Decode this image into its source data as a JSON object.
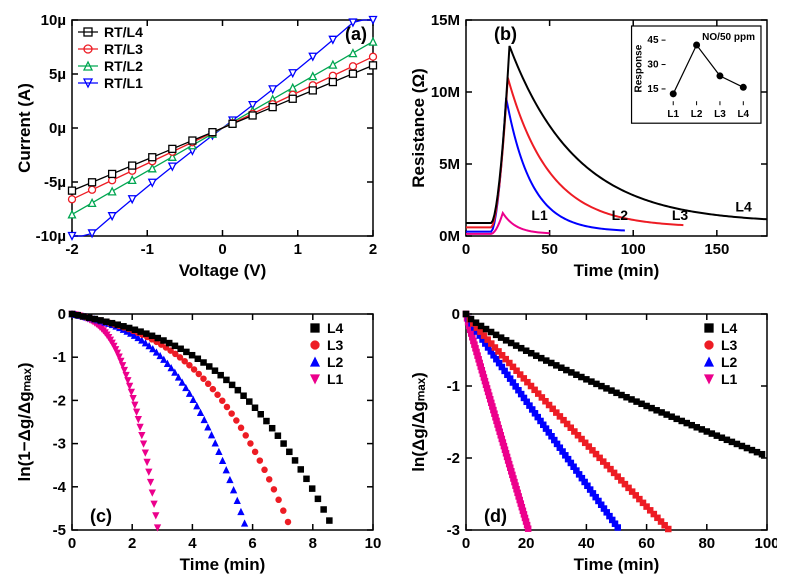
{
  "global": {
    "background_color": "#ffffff",
    "axis_color": "#000000",
    "font_family": "Arial",
    "tick_label_fontsize": 15,
    "axis_label_fontsize": 17,
    "panel_label_fontsize": 18,
    "legend_fontsize": 14
  },
  "colors": {
    "L4": "#000000",
    "L3": "#ed1c24",
    "L2": "#00a651",
    "L1": "#0000ff",
    "L3_alt": "#ed1c24",
    "L2_alt": "#0000ff",
    "L1_alt": "#ec008c"
  },
  "panel_a": {
    "label": "(a)",
    "xlabel": "Voltage (V)",
    "ylabel": "Current (A)",
    "xlim": [
      -2,
      2
    ],
    "xtick_step": 1,
    "ylim": [
      -10,
      10
    ],
    "ytick_step": 5,
    "ytick_suffix": "µ",
    "legend": [
      {
        "key": "RT/L4",
        "marker": "square",
        "color": "#000000"
      },
      {
        "key": "RT/L3",
        "marker": "circle",
        "color": "#ed1c24"
      },
      {
        "key": "RT/L2",
        "marker": "triangle-up",
        "color": "#00a651"
      },
      {
        "key": "RT/L1",
        "marker": "triangle-down",
        "color": "#0000ff"
      }
    ],
    "series": {
      "L4": {
        "color": "#000000",
        "marker": "square",
        "slope": 2.9,
        "intercept": 0
      },
      "L3": {
        "color": "#ed1c24",
        "marker": "circle",
        "slope": 3.3,
        "intercept": 0
      },
      "L2": {
        "color": "#00a651",
        "marker": "triangle-up",
        "slope": 4.0,
        "intercept": 0
      },
      "L1": {
        "color": "#0000ff",
        "marker": "triangle-down",
        "slope": 5.2,
        "intercept": 0,
        "curve": 0.5
      }
    }
  },
  "panel_b": {
    "label": "(b)",
    "xlabel": "Time (min)",
    "ylabel": "Resistance (Ω)",
    "xlim": [
      0,
      180
    ],
    "xtick_step": 50,
    "ylim": [
      0,
      15
    ],
    "ytick_step": 5,
    "ytick_suffix": "M",
    "series_labels": [
      {
        "text": "L1",
        "x": 44,
        "y": 1.1
      },
      {
        "text": "L2",
        "x": 92,
        "y": 1.1
      },
      {
        "text": "L3",
        "x": 128,
        "y": 1.1
      },
      {
        "text": "L4",
        "x": 166,
        "y": 1.7
      }
    ],
    "series": {
      "L4": {
        "color": "#000000",
        "baseline": 0.9,
        "peak": 13.2,
        "peak_t": 26,
        "rise_start": 15,
        "decay_tau": 40,
        "end_t": 180
      },
      "L3": {
        "color": "#ed1c24",
        "baseline": 0.6,
        "peak": 11.0,
        "peak_t": 25,
        "rise_start": 15,
        "decay_tau": 25,
        "end_t": 130
      },
      "L2": {
        "color": "#0000ff",
        "baseline": 0.3,
        "peak": 9.6,
        "peak_t": 24,
        "rise_start": 15,
        "decay_tau": 15,
        "end_t": 95
      },
      "L1": {
        "color": "#ec008c",
        "baseline": 0.15,
        "peak": 1.6,
        "peak_t": 22,
        "rise_start": 15,
        "decay_tau": 8,
        "end_t": 50
      }
    },
    "inset": {
      "title": "NO/50 ppm",
      "xlabel_ticks": [
        "L1",
        "L2",
        "L3",
        "L4"
      ],
      "ylabel": "Response",
      "ylim": [
        5,
        50
      ],
      "ytick_step": 15,
      "points": [
        {
          "x": 1,
          "y": 12
        },
        {
          "x": 2,
          "y": 42
        },
        {
          "x": 3,
          "y": 23
        },
        {
          "x": 4,
          "y": 16
        }
      ],
      "marker_color": "#000000",
      "line_color": "#000000"
    }
  },
  "panel_c": {
    "label": "(c)",
    "xlabel": "Time (min)",
    "ylabel": "ln(1−Δg/Δgₘₐₓ)",
    "xlim": [
      0,
      10
    ],
    "xtick_step": 2,
    "ylim": [
      -5,
      0
    ],
    "ytick_step": 1,
    "legend": [
      {
        "key": "L4",
        "color": "#000000",
        "marker": "square-filled"
      },
      {
        "key": "L3",
        "color": "#ed1c24",
        "marker": "circle-filled"
      },
      {
        "key": "L2",
        "color": "#0000ff",
        "marker": "triangle-up-filled"
      },
      {
        "key": "L1",
        "color": "#ec008c",
        "marker": "triangle-down-filled"
      }
    ],
    "series": {
      "L4": {
        "color": "#000000",
        "marker": "square-filled",
        "end_x": 9.5,
        "curve_k": 0.35
      },
      "L3": {
        "color": "#ed1c24",
        "marker": "circle-filled",
        "end_x": 7.8,
        "curve_k": 0.45
      },
      "L2": {
        "color": "#0000ff",
        "marker": "triangle-up-filled",
        "end_x": 6.1,
        "curve_k": 0.55
      },
      "L1": {
        "color": "#ec008c",
        "marker": "triangle-down-filled",
        "end_x": 2.9,
        "curve_k": 1.2
      }
    }
  },
  "panel_d": {
    "label": "(d)",
    "xlabel": "Time (min)",
    "ylabel": "ln(Δg/Δgₘₐₓ)",
    "xlim": [
      0,
      100
    ],
    "xtick_step": 20,
    "ylim": [
      -3,
      0
    ],
    "ytick_step": 1,
    "legend": [
      {
        "key": "L4",
        "color": "#000000",
        "marker": "square-filled"
      },
      {
        "key": "L3",
        "color": "#ed1c24",
        "marker": "circle-filled"
      },
      {
        "key": "L2",
        "color": "#0000ff",
        "marker": "triangle-up-filled"
      },
      {
        "key": "L1",
        "color": "#ec008c",
        "marker": "triangle-down-filled"
      }
    ],
    "series": {
      "L4": {
        "color": "#000000",
        "slope": -0.021,
        "end_x": 100
      },
      "L3": {
        "color": "#ed1c24",
        "slope": -0.042,
        "end_x": 72
      },
      "L2": {
        "color": "#0000ff",
        "slope": -0.056,
        "end_x": 55
      },
      "L1": {
        "color": "#ec008c",
        "slope": -0.14,
        "end_x": 21
      }
    }
  }
}
